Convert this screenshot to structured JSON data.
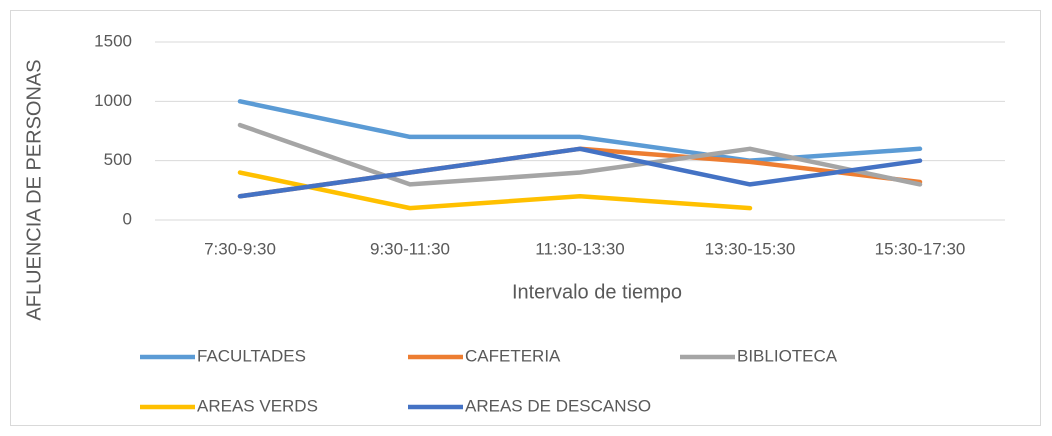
{
  "chart_data": {
    "type": "line",
    "x_label": "Intervalo de tiempo",
    "y_label": "AFLUENCIA DE PERSONAS",
    "categories": [
      "7:30-9:30",
      "9:30-11:30",
      "11:30-13:30",
      "13:30-15:30",
      "15:30-17:30"
    ],
    "series": [
      {
        "name": "FACULTADES",
        "color": "#5b9bd5",
        "values": [
          1000,
          700,
          700,
          500,
          600
        ]
      },
      {
        "name": "CAFETERIA",
        "color": "#ed7d31",
        "values": [
          200,
          400,
          600,
          490,
          320
        ]
      },
      {
        "name": "BIBLIOTECA",
        "color": "#a5a5a5",
        "values": [
          800,
          300,
          400,
          600,
          300
        ]
      },
      {
        "name": "AREAS VERDS",
        "color": "#ffc000",
        "values": [
          400,
          100,
          200,
          100,
          null
        ]
      },
      {
        "name": "AREAS DE DESCANSO",
        "color": "#4472c4",
        "values": [
          200,
          400,
          600,
          300,
          500
        ]
      }
    ],
    "ylim": [
      0,
      1500
    ],
    "yticks": [
      0,
      500,
      1000,
      1500
    ],
    "grid": true,
    "legend": "bottom"
  }
}
